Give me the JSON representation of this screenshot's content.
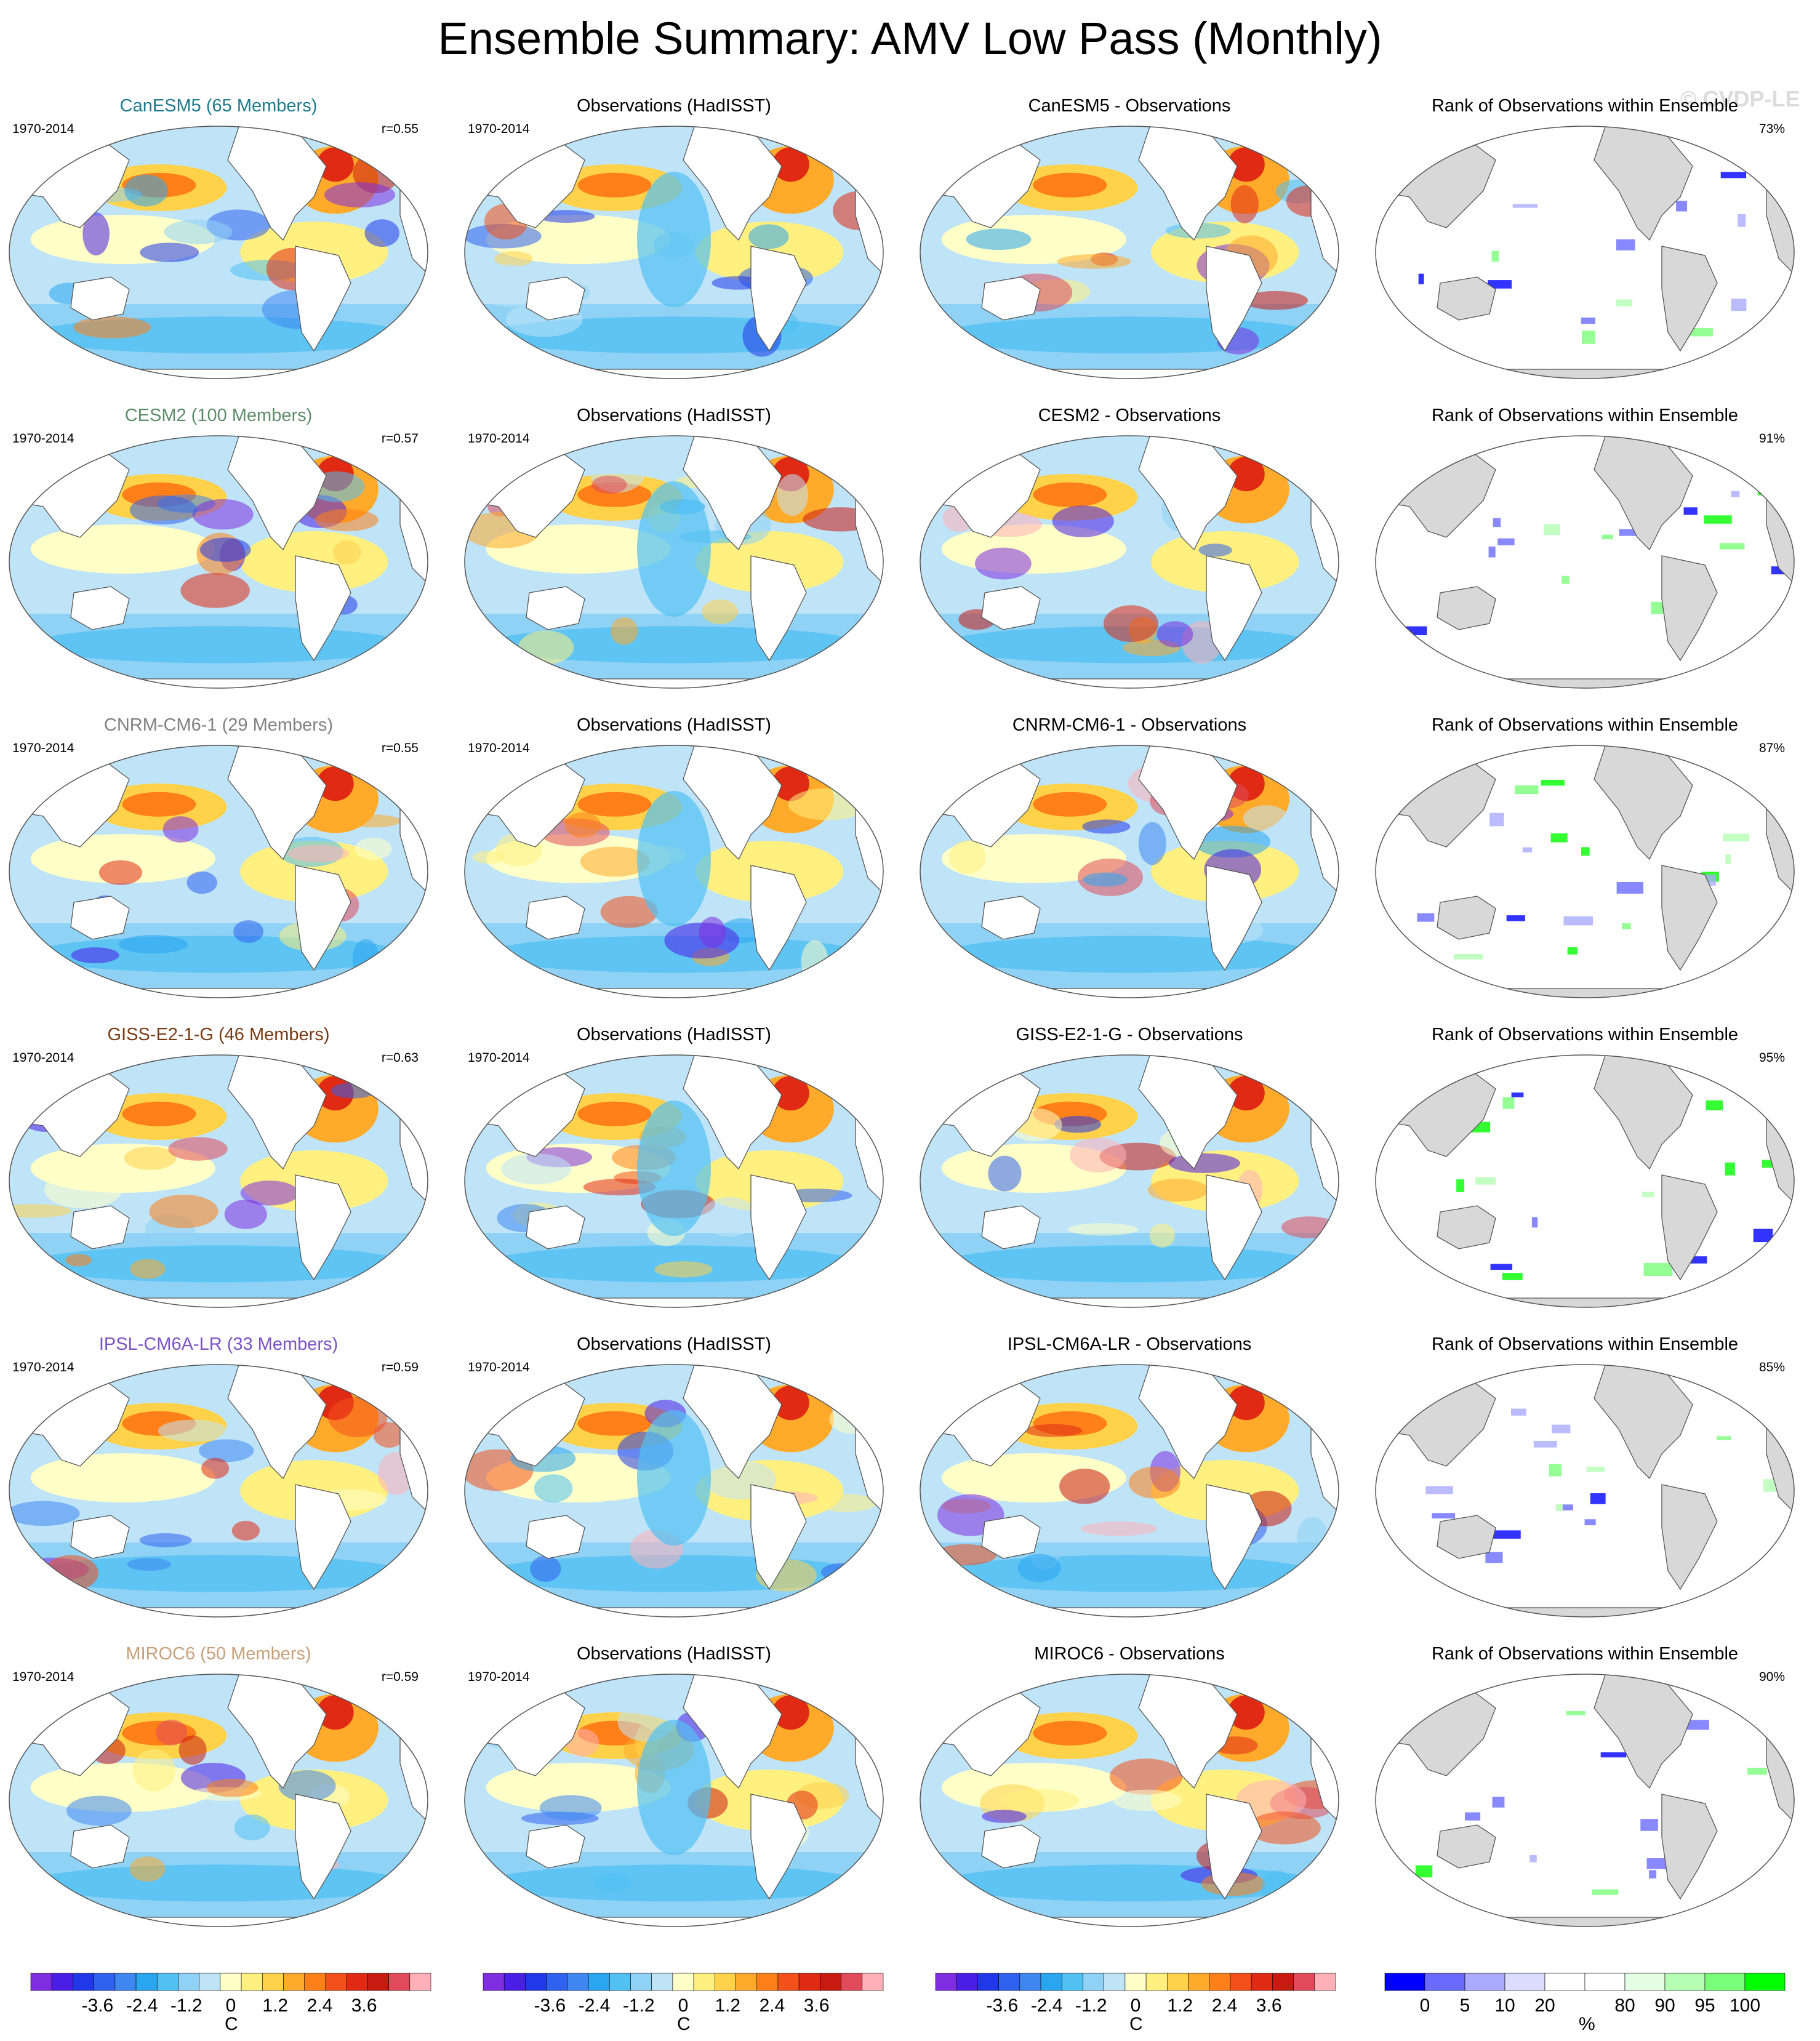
{
  "title": "Ensemble Summary: AMV Low Pass (Monthly)",
  "copyright": "© CVDP-LE",
  "period": "1970-2014",
  "columns": [
    "model",
    "observations",
    "difference",
    "rank"
  ],
  "rows": [
    {
      "model": "CanESM5",
      "model_title": "CanESM5 (65 Members)",
      "model_color": "#1f7a8c",
      "r": "r=0.55",
      "obs_title": "Observations (HadISST)",
      "diff_title": "CanESM5 - Observations",
      "rank_title": "Rank of Observations within Ensemble",
      "rank_pct": "73%"
    },
    {
      "model": "CESM2",
      "model_title": "CESM2 (100 Members)",
      "model_color": "#5e8c6a",
      "r": "r=0.57",
      "obs_title": "Observations (HadISST)",
      "diff_title": "CESM2 - Observations",
      "rank_title": "Rank of Observations within Ensemble",
      "rank_pct": "91%"
    },
    {
      "model": "CNRM-CM6-1",
      "model_title": "CNRM-CM6-1 (29 Members)",
      "model_color": "#808080",
      "r": "r=0.55",
      "obs_title": "Observations (HadISST)",
      "diff_title": "CNRM-CM6-1 - Observations",
      "rank_title": "Rank of Observations within Ensemble",
      "rank_pct": "87%"
    },
    {
      "model": "GISS-E2-1-G",
      "model_title": "GISS-E2-1-G (46 Members)",
      "model_color": "#7a3b14",
      "r": "r=0.63",
      "obs_title": "Observations (HadISST)",
      "diff_title": "GISS-E2-1-G - Observations",
      "rank_title": "Rank of Observations within Ensemble",
      "rank_pct": "95%"
    },
    {
      "model": "IPSL-CM6A-LR",
      "model_title": "IPSL-CM6A-LR (33 Members)",
      "model_color": "#7b52c7",
      "r": "r=0.59",
      "obs_title": "Observations (HadISST)",
      "diff_title": "IPSL-CM6A-LR - Observations",
      "rank_title": "Rank of Observations within Ensemble",
      "rank_pct": "85%"
    },
    {
      "model": "MIROC6",
      "model_title": "MIROC6 (50 Members)",
      "model_color": "#c8a07a",
      "r": "r=0.59",
      "obs_title": "Observations (HadISST)",
      "diff_title": "MIROC6 - Observations",
      "rank_title": "Rank of Observations within Ensemble",
      "rank_pct": "90%"
    }
  ],
  "colorbars": {
    "sst": {
      "colors": [
        "#7e2ee0",
        "#4a1ee6",
        "#2038e8",
        "#2f62ee",
        "#3e86f0",
        "#2aa6f0",
        "#51c0f2",
        "#8fd2f5",
        "#bfe4f8",
        "#ffffc8",
        "#fff080",
        "#ffd24a",
        "#ffaa2a",
        "#ff8018",
        "#f4501a",
        "#e02a14",
        "#c81a10",
        "#e04a5a",
        "#ffb0b8"
      ],
      "ticks": [
        "-3.6",
        "-2.4",
        "-1.2",
        "0",
        "1.2",
        "2.4",
        "3.6"
      ],
      "unit": "C"
    },
    "rank": {
      "colors": [
        "#0000ff",
        "#6a6aff",
        "#aaaaff",
        "#dcdcff",
        "#ffffff",
        "#ffffff",
        "#e4ffe4",
        "#b4ffb4",
        "#7aff7a",
        "#00ff00"
      ],
      "ticks": [
        "0",
        "5",
        "10",
        "20",
        "80",
        "90",
        "95",
        "100"
      ],
      "unit": "%"
    }
  },
  "colors": {
    "land": "#ffffff",
    "rank_land": "#d8d8d8",
    "coast": "#555555"
  }
}
